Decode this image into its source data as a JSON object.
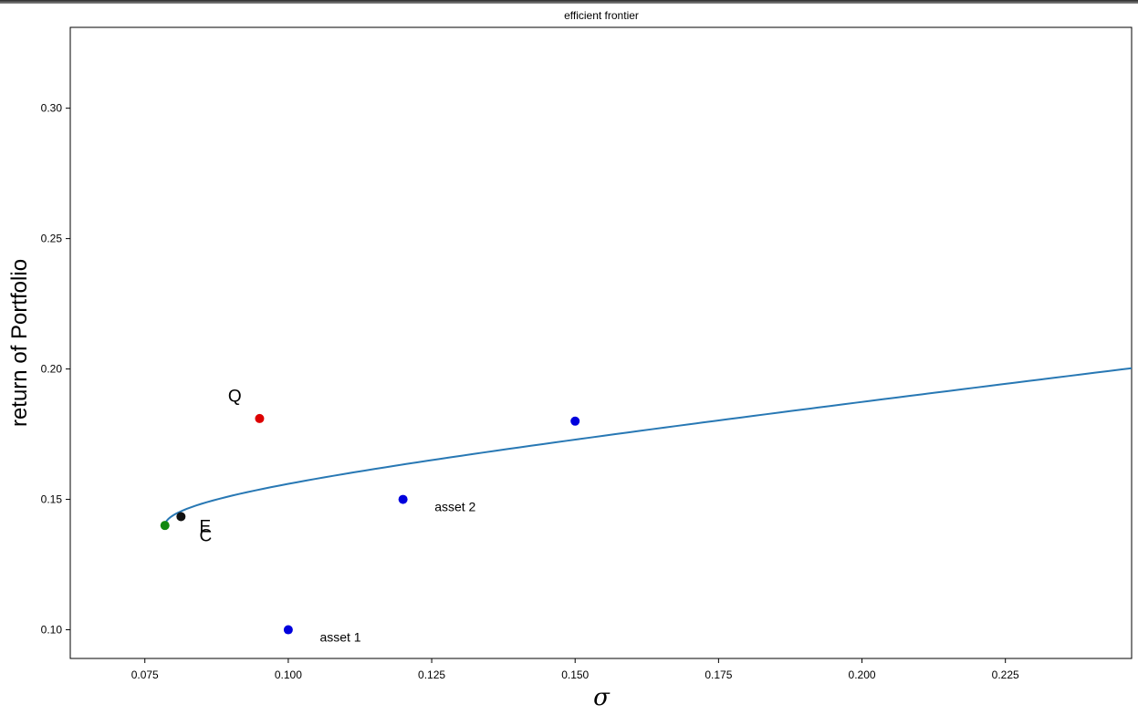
{
  "chart_data": {
    "type": "line",
    "title": "efficient frontier",
    "xlabel": "σ",
    "ylabel": "return of Portfolio",
    "xlim": [
      0.062,
      0.247
    ],
    "ylim": [
      0.089,
      0.331
    ],
    "grid": false,
    "x_ticks": [
      0.075,
      0.1,
      0.125,
      0.15,
      0.175,
      0.2,
      0.225
    ],
    "x_tick_labels": [
      "0.075",
      "0.100",
      "0.125",
      "0.150",
      "0.175",
      "0.200",
      "0.225"
    ],
    "y_ticks": [
      0.1,
      0.15,
      0.2,
      0.25,
      0.3
    ],
    "y_tick_labels": [
      "0.10",
      "0.15",
      "0.20",
      "0.25",
      "0.30"
    ],
    "frontier": {
      "color": "#2878b4",
      "min_variance": {
        "x": 0.0785,
        "y": 0.14
      },
      "curvature": 0.2575,
      "y_max": 0.331
    },
    "points": [
      {
        "name": "asset 1",
        "x": 0.1,
        "y": 0.1,
        "color": "#0000dd"
      },
      {
        "name": "asset 2",
        "x": 0.12,
        "y": 0.15,
        "color": "#0000dd"
      },
      {
        "name": "",
        "x": 0.15,
        "y": 0.18,
        "color": "#0000dd"
      },
      {
        "name": "Q",
        "x": 0.095,
        "y": 0.181,
        "color": "#dd0000"
      },
      {
        "name": "E",
        "x": 0.0813,
        "y": 0.1434,
        "color": "#111111"
      },
      {
        "name": "C",
        "x": 0.0785,
        "y": 0.14,
        "color": "#118811"
      }
    ],
    "annotations": [
      {
        "text": "asset 1",
        "x": 0.1055,
        "y": 0.0955,
        "size": 14
      },
      {
        "text": "asset 2",
        "x": 0.1255,
        "y": 0.1455,
        "size": 14
      },
      {
        "text": "Q",
        "x": 0.0895,
        "y": 0.1875,
        "size": 19
      },
      {
        "text": "E",
        "x": 0.0845,
        "y": 0.1375,
        "size": 19
      },
      {
        "text": "C",
        "x": 0.0845,
        "y": 0.134,
        "size": 19
      }
    ]
  }
}
